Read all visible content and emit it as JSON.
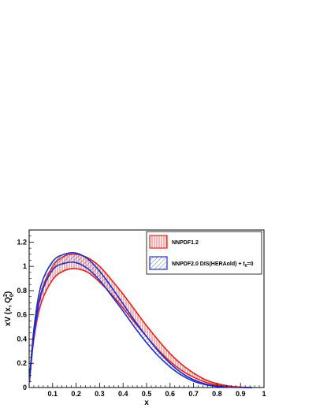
{
  "chart_data": {
    "type": "line",
    "title": "",
    "xlabel": "x",
    "ylabel_main": "xV (x, Q",
    "ylabel_sup": "2",
    "ylabel_sub": "0",
    "ylabel_close": ")",
    "xlim": [
      0,
      1
    ],
    "ylim": [
      0,
      1.3
    ],
    "x_ticks": [
      0.1,
      0.2,
      0.3,
      0.4,
      0.5,
      0.6,
      0.7,
      0.8,
      0.9,
      1
    ],
    "x_tick_labels": [
      "0.1",
      "0.2",
      "0.3",
      "0.4",
      "0.5",
      "0.6",
      "0.7",
      "0.8",
      "0.9",
      "1"
    ],
    "y_ticks": [
      0,
      0.2,
      0.4,
      0.6,
      0.8,
      1,
      1.2
    ],
    "y_tick_labels": [
      "0",
      "0.2",
      "0.4",
      "0.6",
      "0.8",
      "1",
      "1.2"
    ],
    "x": [
      0.001,
      0.02,
      0.05,
      0.1,
      0.15,
      0.2,
      0.25,
      0.3,
      0.35,
      0.4,
      0.45,
      0.5,
      0.55,
      0.6,
      0.65,
      0.7,
      0.75,
      0.8,
      0.85,
      0.9,
      0.95
    ],
    "series": [
      {
        "name": "NNPDF1.2",
        "color": "#e8201a",
        "hatch": "vertical",
        "upper": [
          0.05,
          0.45,
          0.78,
          1.0,
          1.085,
          1.1,
          1.07,
          1.0,
          0.89,
          0.77,
          0.64,
          0.51,
          0.39,
          0.28,
          0.19,
          0.12,
          0.065,
          0.032,
          0.013,
          0.004,
          0.001
        ],
        "lower": [
          0.04,
          0.4,
          0.69,
          0.89,
          0.965,
          0.98,
          0.95,
          0.87,
          0.77,
          0.655,
          0.535,
          0.42,
          0.31,
          0.215,
          0.14,
          0.085,
          0.045,
          0.02,
          0.007,
          0.002,
          0.0
        ]
      },
      {
        "name": "NNPDF2.0 DIS(HERAold) + t",
        "name_sub": "0",
        "name_tail": "=0",
        "color": "#1a2ed8",
        "hatch": "diagonal",
        "upper": [
          0.05,
          0.48,
          0.84,
          1.04,
          1.1,
          1.11,
          1.06,
          0.96,
          0.83,
          0.69,
          0.55,
          0.42,
          0.3,
          0.2,
          0.12,
          0.065,
          0.03,
          0.012,
          0.004,
          0.001,
          0.0
        ],
        "lower": [
          0.045,
          0.43,
          0.76,
          0.97,
          1.025,
          1.03,
          0.98,
          0.885,
          0.76,
          0.63,
          0.495,
          0.37,
          0.26,
          0.17,
          0.1,
          0.052,
          0.024,
          0.009,
          0.003,
          0.001,
          0.0
        ]
      }
    ],
    "legend_position": "top-right",
    "grid": false
  }
}
